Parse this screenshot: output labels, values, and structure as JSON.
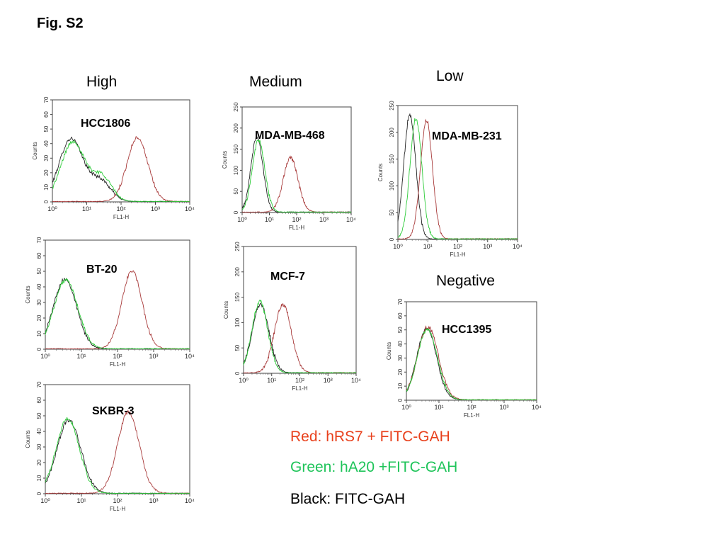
{
  "figure_title": "Fig. S2",
  "group_labels": {
    "high": "High",
    "medium": "Medium",
    "low": "Low",
    "negative": "Negative"
  },
  "legend": {
    "red": "Red: hRS7 + FITC-GAH",
    "green": "Green: hA20 +FITC-GAH",
    "black": "Black: FITC-GAH"
  },
  "colors": {
    "red_series": "#a83a3a",
    "green_series": "#2ecc3a",
    "black_series": "#222222",
    "legend_red": "#e8401c",
    "legend_green": "#1fc45a",
    "legend_black": "#000000"
  },
  "chart_data": [
    {
      "type": "line",
      "title": "HCC1806",
      "xlabel": "FL1-H",
      "ylabel": "Counts",
      "x_scale": "log",
      "xlim": [
        1,
        10000
      ],
      "ylim": [
        0,
        70
      ],
      "x_ticks": [
        "10⁰",
        "10¹",
        "10²",
        "10³",
        "10⁴"
      ],
      "y_ticks": [
        "0",
        "10",
        "20",
        "30",
        "40",
        "50",
        "60",
        "70"
      ],
      "series": [
        {
          "name": "black",
          "peaks": [
            {
              "center": 3.5,
              "height": 43,
              "width": 0.35
            },
            {
              "center": 25,
              "height": 14,
              "width": 0.3
            }
          ]
        },
        {
          "name": "green",
          "peaks": [
            {
              "center": 4,
              "height": 41,
              "width": 0.35
            },
            {
              "center": 28,
              "height": 17,
              "width": 0.28
            }
          ]
        },
        {
          "name": "red",
          "peaks": [
            {
              "center": 300,
              "height": 44,
              "width": 0.3
            }
          ]
        }
      ]
    },
    {
      "type": "line",
      "title": "BT-20",
      "xlabel": "FL1-H",
      "ylabel": "Counts",
      "x_scale": "log",
      "xlim": [
        1,
        10000
      ],
      "ylim": [
        0,
        70
      ],
      "x_ticks": [
        "10⁰",
        "10¹",
        "10²",
        "10³",
        "10⁴"
      ],
      "y_ticks": [
        "0",
        "10",
        "20",
        "30",
        "40",
        "50",
        "60",
        "70"
      ],
      "series": [
        {
          "name": "black",
          "peaks": [
            {
              "center": 3.5,
              "height": 45,
              "width": 0.32
            }
          ]
        },
        {
          "name": "green",
          "peaks": [
            {
              "center": 3.7,
              "height": 44,
              "width": 0.33
            }
          ]
        },
        {
          "name": "red",
          "peaks": [
            {
              "center": 250,
              "height": 50,
              "width": 0.28
            }
          ]
        }
      ]
    },
    {
      "type": "line",
      "title": "SKBR-3",
      "xlabel": "FL1-H",
      "ylabel": "Counts",
      "x_scale": "log",
      "xlim": [
        1,
        10000
      ],
      "ylim": [
        0,
        70
      ],
      "x_ticks": [
        "10⁰",
        "10¹",
        "10²",
        "10³",
        "10⁴"
      ],
      "y_ticks": [
        "0",
        "10",
        "20",
        "30",
        "40",
        "50",
        "60",
        "70"
      ],
      "series": [
        {
          "name": "black",
          "peaks": [
            {
              "center": 4.5,
              "height": 47,
              "width": 0.33
            }
          ]
        },
        {
          "name": "green",
          "peaks": [
            {
              "center": 4.2,
              "height": 48,
              "width": 0.32
            }
          ]
        },
        {
          "name": "red",
          "peaks": [
            {
              "center": 200,
              "height": 52,
              "width": 0.3
            }
          ]
        }
      ]
    },
    {
      "type": "line",
      "title": "MDA-MB-468",
      "xlabel": "FL1-H",
      "ylabel": "Counts",
      "x_scale": "log",
      "xlim": [
        1,
        10000
      ],
      "ylim": [
        0,
        250
      ],
      "x_ticks": [
        "10⁰",
        "10¹",
        "10²",
        "10³",
        "10⁴"
      ],
      "y_ticks": [
        "0",
        "50",
        "100",
        "150",
        "200",
        "250"
      ],
      "series": [
        {
          "name": "black",
          "peaks": [
            {
              "center": 3.5,
              "height": 178,
              "width": 0.22
            }
          ]
        },
        {
          "name": "green",
          "peaks": [
            {
              "center": 4,
              "height": 170,
              "width": 0.23
            }
          ]
        },
        {
          "name": "red",
          "peaks": [
            {
              "center": 60,
              "height": 128,
              "width": 0.27
            }
          ]
        }
      ]
    },
    {
      "type": "line",
      "title": "MCF-7",
      "xlabel": "FL1-H",
      "ylabel": "Counts",
      "x_scale": "log",
      "xlim": [
        1,
        10000
      ],
      "ylim": [
        0,
        250
      ],
      "x_ticks": [
        "10⁰",
        "10¹",
        "10²",
        "10³",
        "10⁴"
      ],
      "y_ticks": [
        "0",
        "50",
        "100",
        "150",
        "200",
        "250"
      ],
      "series": [
        {
          "name": "black",
          "peaks": [
            {
              "center": 4,
              "height": 135,
              "width": 0.3
            }
          ]
        },
        {
          "name": "green",
          "peaks": [
            {
              "center": 3.8,
              "height": 140,
              "width": 0.28
            }
          ]
        },
        {
          "name": "red",
          "peaks": [
            {
              "center": 25,
              "height": 135,
              "width": 0.3
            }
          ]
        }
      ]
    },
    {
      "type": "line",
      "title": "MDA-MB-231",
      "xlabel": "FL1-H",
      "ylabel": "Counts",
      "x_scale": "log",
      "xlim": [
        1,
        10000
      ],
      "ylim": [
        0,
        250
      ],
      "x_ticks": [
        "10⁰",
        "10¹",
        "10²",
        "10³",
        "10⁴"
      ],
      "y_ticks": [
        "0",
        "50",
        "100",
        "150",
        "200",
        "250"
      ],
      "series": [
        {
          "name": "black",
          "peaks": [
            {
              "center": 2.5,
              "height": 232,
              "width": 0.2
            }
          ]
        },
        {
          "name": "green",
          "peaks": [
            {
              "center": 4,
              "height": 225,
              "width": 0.2
            }
          ]
        },
        {
          "name": "red",
          "peaks": [
            {
              "center": 9,
              "height": 222,
              "width": 0.2
            }
          ]
        }
      ]
    },
    {
      "type": "line",
      "title": "HCC1395",
      "xlabel": "FL1-H",
      "ylabel": "Counts",
      "x_scale": "log",
      "xlim": [
        1,
        10000
      ],
      "ylim": [
        0,
        70
      ],
      "x_ticks": [
        "10⁰",
        "10¹",
        "10²",
        "10³",
        "10⁴"
      ],
      "y_ticks": [
        "0",
        "10",
        "20",
        "30",
        "40",
        "50",
        "60",
        "70"
      ],
      "series": [
        {
          "name": "black",
          "peaks": [
            {
              "center": 4.2,
              "height": 51,
              "width": 0.3
            }
          ]
        },
        {
          "name": "green",
          "peaks": [
            {
              "center": 4.4,
              "height": 50,
              "width": 0.31
            }
          ]
        },
        {
          "name": "red",
          "peaks": [
            {
              "center": 4.6,
              "height": 52,
              "width": 0.32
            }
          ]
        }
      ]
    }
  ]
}
